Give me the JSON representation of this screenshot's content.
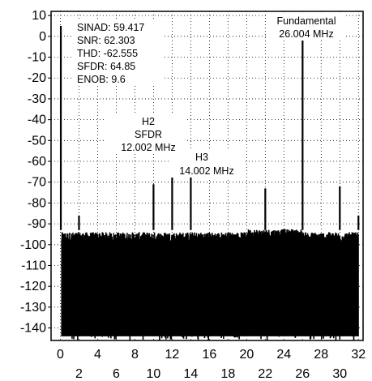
{
  "chart_data": {
    "type": "line",
    "title": "",
    "xlabel": "",
    "ylabel": "",
    "xlim": [
      -1,
      32.5
    ],
    "ylim": [
      -146,
      12
    ],
    "grid": true,
    "x_ticks_top": [
      "0",
      "4",
      "8",
      "12",
      "16",
      "20",
      "24",
      "28",
      "32"
    ],
    "x_ticks_bottom": [
      "2",
      "6",
      "10",
      "14",
      "18",
      "22",
      "26",
      "30"
    ],
    "y_ticks": [
      "10",
      "0",
      "-10",
      "-20",
      "-30",
      "-40",
      "-50",
      "-60",
      "-70",
      "-80",
      "-90",
      "-100",
      "-110",
      "-120",
      "-130",
      "-140"
    ],
    "noise_floor_db": [
      -146,
      -95
    ],
    "series": [
      {
        "color": "#000000",
        "peaks": [
          {
            "x": 0.05,
            "y": 5
          },
          {
            "x": 2.0,
            "y": -86
          },
          {
            "x": 10.0,
            "y": -71
          },
          {
            "x": 12.002,
            "y": -65
          },
          {
            "x": 14.002,
            "y": -66
          },
          {
            "x": 22.0,
            "y": -73
          },
          {
            "x": 26.004,
            "y": -2
          },
          {
            "x": 30.0,
            "y": -72
          },
          {
            "x": 32.0,
            "y": -86
          }
        ]
      }
    ],
    "metrics": {
      "sinad": "SINAD: 59.417",
      "snr": "SNR: 62.303",
      "thd": "THD: -62.555",
      "sfdr": "SFDR: 64.85",
      "enob": "ENOB: 9.6"
    },
    "annotations": {
      "fundamental_title": "Fundamental",
      "fundamental_freq": "26.004 MHz",
      "h2_title": "H2",
      "h2_sub": "SFDR",
      "h2_freq": "12.002 MHz",
      "h3_title": "H3",
      "h3_freq": "14.002 MHz"
    }
  }
}
